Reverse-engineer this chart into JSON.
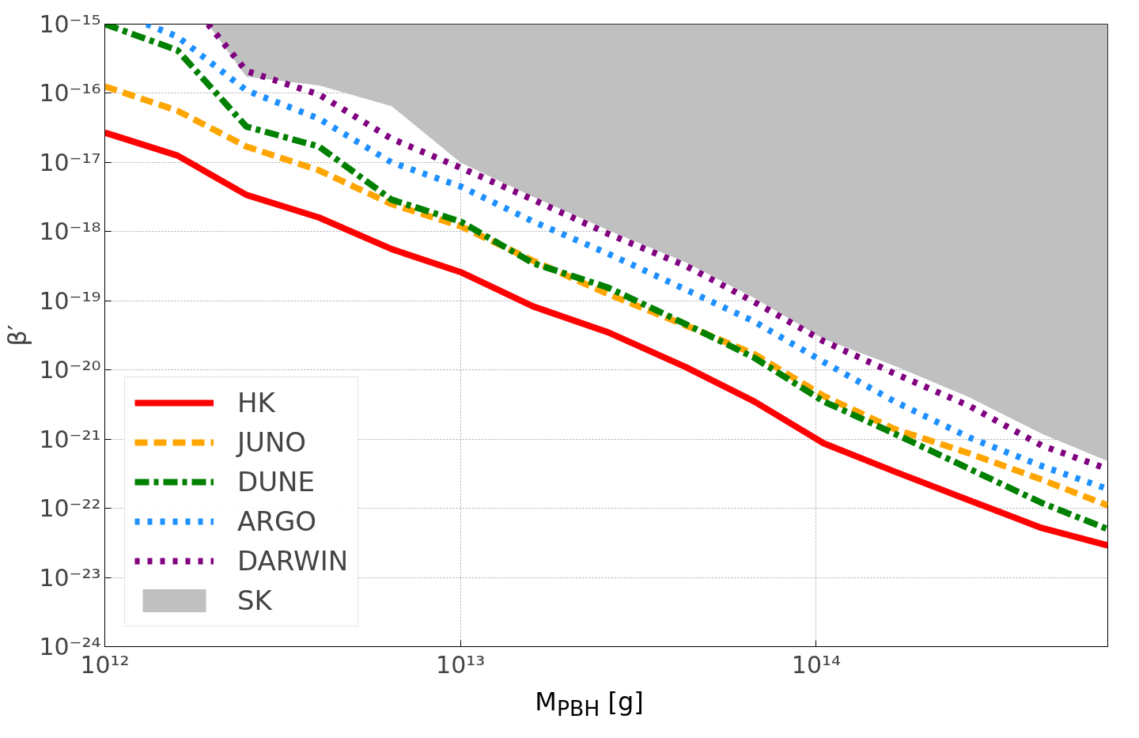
{
  "chart_data": {
    "type": "line",
    "xlabel": "M$_{PBH}$ [g]",
    "ylabel": "β′",
    "log": "xy",
    "grid": true,
    "legend": "bottom left",
    "xlim": [
      1000000000000.0,
      660000000000000.0
    ],
    "ylim": [
      1e-24,
      1e-15
    ],
    "xticks": [
      {
        "value": 1000000000000.0,
        "label": "10¹²"
      },
      {
        "value": 10000000000000.0,
        "label": "10¹³"
      },
      {
        "value": 100000000000000.0,
        "label": "10¹⁴"
      }
    ],
    "yticks": [
      {
        "value": 1e-24,
        "label": "10⁻²⁴"
      },
      {
        "value": 1e-23,
        "label": "10⁻²³"
      },
      {
        "value": 1e-22,
        "label": "10⁻²²"
      },
      {
        "value": 1e-21,
        "label": "10⁻²¹"
      },
      {
        "value": 1e-20,
        "label": "10⁻²⁰"
      },
      {
        "value": 1e-19,
        "label": "10⁻¹⁹"
      },
      {
        "value": 1e-18,
        "label": "10⁻¹⁸"
      },
      {
        "value": 1e-17,
        "label": "10⁻¹⁷"
      },
      {
        "value": 1e-16,
        "label": "10⁻¹⁶"
      },
      {
        "value": 1e-15,
        "label": "10⁻¹⁵"
      }
    ],
    "x": [
      1000000000000.0,
      1600000000000.0,
      2500000000000.0,
      4000000000000.0,
      6400000000000.0,
      10000000000000.0,
      16000000000000.0,
      26000000000000.0,
      43000000000000.0,
      67000000000000.0,
      105000000000000.0,
      166000000000000.0,
      270000000000000.0,
      430000000000000.0,
      660000000000000.0
    ],
    "series": [
      {
        "name": "HK",
        "color": "#ff0000",
        "line_style": "solid",
        "values": [
          2.7e-17,
          1.26e-17,
          3.4e-18,
          1.6e-18,
          5.6e-19,
          2.6e-19,
          8.3e-20,
          3.5e-20,
          1.1e-20,
          3.5e-21,
          8.7e-22,
          3.4e-22,
          1.3e-22,
          5.2e-23,
          2.9e-23
        ]
      },
      {
        "name": "JUNO",
        "color": "#ffa500",
        "line_style": "dashed",
        "values": [
          1.26e-16,
          5.6e-17,
          1.7e-17,
          7.7e-18,
          2.5e-18,
          1.2e-18,
          3.8e-19,
          1.25e-19,
          4.4e-20,
          1.7e-20,
          4.2e-21,
          1.4e-21,
          6.2e-22,
          2.6e-22,
          1.1e-22
        ]
      },
      {
        "name": "DUNE",
        "color": "#008000",
        "line_style": "dashdot",
        "values": [
          1e-15,
          4.2e-16,
          3.3e-17,
          1.7e-17,
          2.9e-18,
          1.4e-18,
          3.5e-19,
          1.55e-19,
          4.6e-20,
          1.5e-20,
          3.5e-21,
          1.2e-21,
          3.7e-22,
          1.2e-22,
          5e-23
        ]
      },
      {
        "name": "ARGO",
        "color": "#1e90ff",
        "line_style": "dotted",
        "x": [
          1310000000000.0,
          1600000000000.0,
          2500000000000.0,
          4000000000000.0,
          6400000000000.0,
          10000000000000.0,
          16000000000000.0,
          26000000000000.0,
          43000000000000.0,
          67000000000000.0,
          105000000000000.0,
          166000000000000.0,
          270000000000000.0,
          430000000000000.0,
          660000000000000.0
        ],
        "values": [
          1e-15,
          6.6e-16,
          1.1e-16,
          4.3e-17,
          1e-17,
          4.5e-18,
          1.4e-18,
          4.8e-19,
          1.45e-19,
          5e-20,
          1.3e-20,
          3.5e-21,
          1.05e-21,
          4.1e-22,
          1.9e-22
        ]
      },
      {
        "name": "DARWIN",
        "color": "#800080",
        "line_style": "dotted",
        "x": [
          1950000000000.0,
          2500000000000.0,
          4000000000000.0,
          6400000000000.0,
          10000000000000.0,
          16000000000000.0,
          26000000000000.0,
          43000000000000.0,
          67000000000000.0,
          105000000000000.0,
          166000000000000.0,
          270000000000000.0,
          430000000000000.0,
          660000000000000.0
        ],
        "values": [
          1e-15,
          2.1e-16,
          9.6e-17,
          2.2e-17,
          8.4e-18,
          2.9e-18,
          9.3e-19,
          3.2e-19,
          9.6e-20,
          2.6e-20,
          8.9e-21,
          3e-21,
          8.1e-22,
          3.7e-22
        ]
      },
      {
        "name": "SK",
        "type": "area",
        "color": "#c0c0c0",
        "x": [
          1950000000000.0,
          2500000000000.0,
          4000000000000.0,
          6400000000000.0,
          10000000000000.0,
          16000000000000.0,
          26000000000000.0,
          43000000000000.0,
          67000000000000.0,
          105000000000000.0,
          166000000000000.0,
          270000000000000.0,
          430000000000000.0,
          660000000000000.0,
          660000000000000.0
        ],
        "values": [
          1e-15,
          1.74e-16,
          1.3e-16,
          6.5e-17,
          1e-17,
          3.2e-18,
          1.05e-18,
          3.6e-19,
          1.1e-19,
          2.8e-20,
          1.15e-20,
          4e-21,
          1.2e-21,
          4.8e-22,
          1e-15
        ]
      }
    ]
  }
}
